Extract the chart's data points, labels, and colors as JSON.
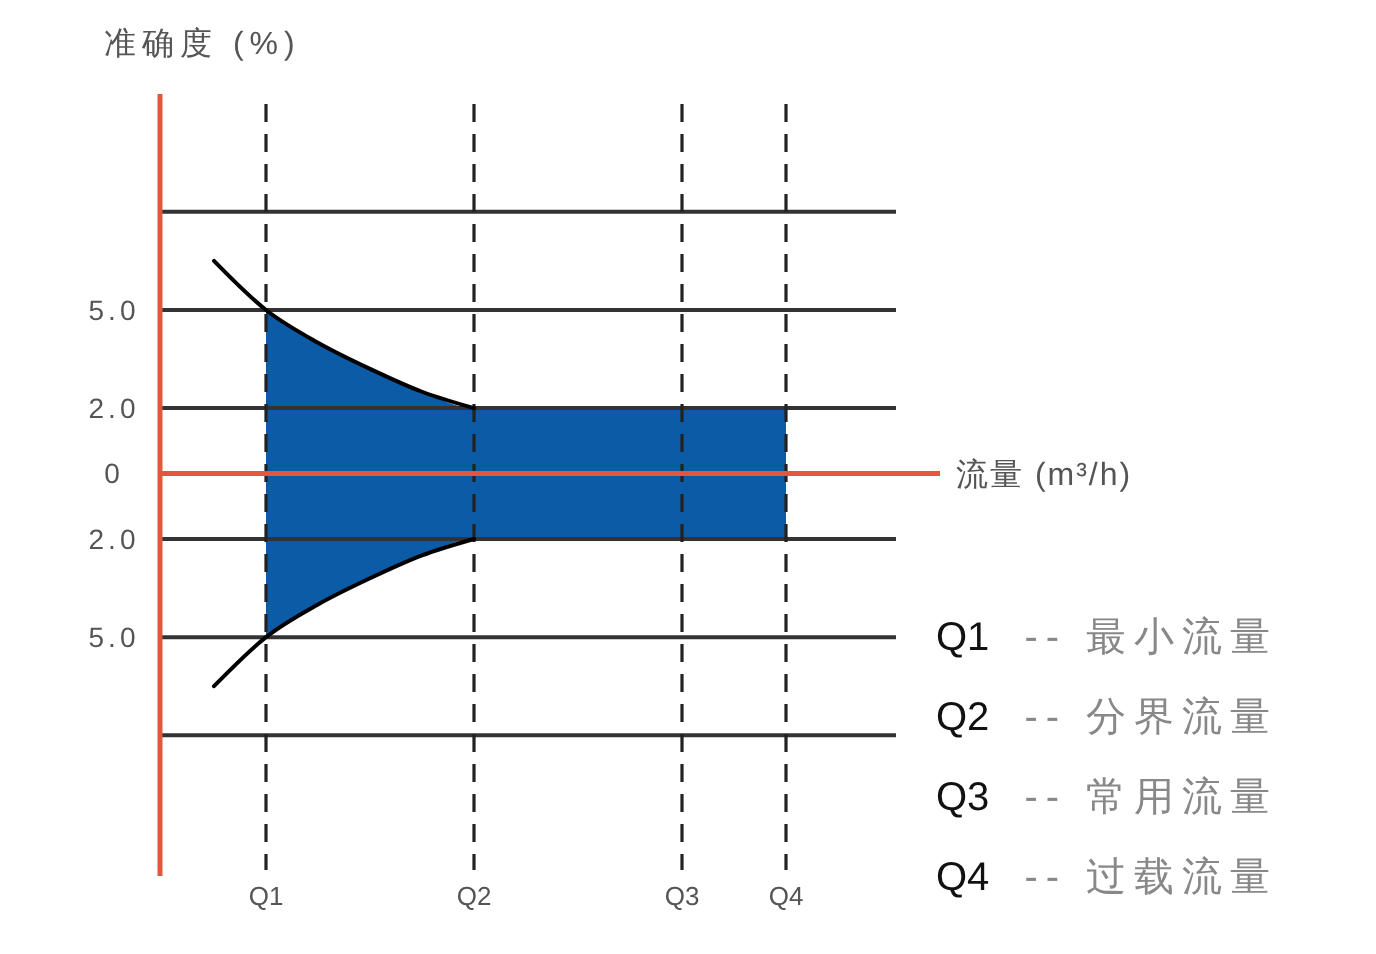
{
  "chart_data": {
    "type": "area",
    "y2label": "准确度 (%)",
    "xlabel": "流量 (m³/h)",
    "categories": [
      null,
      "Q1",
      null,
      null,
      null,
      "Q2",
      null,
      null,
      null,
      "Q3",
      null,
      "Q4"
    ],
    "ylim": [
      12.3,
      -11.6
    ],
    "yticks": [
      {
        "value": 2,
        "label": "2.0"
      },
      {
        "value": 5,
        "label": "5.0"
      },
      {
        "value": 8,
        "label": null
      }
    ],
    "y2lim": [
      -12.3,
      11.6
    ],
    "y2ticks": [
      0,
      {
        "value": 2,
        "label": "2.0"
      },
      {
        "value": 5,
        "label": "5.0"
      },
      {
        "value": 8,
        "label": null
      }
    ],
    "grid": true,
    "ref_lines": [
      {
        "axis": "y",
        "value": 0,
        "color": "#e5573c"
      }
    ],
    "series": [
      {
        "color": "#0b5ba6",
        "axis": "y2",
        "values": [
          null,
          5,
          4.0,
          3.2,
          2.5,
          2,
          2,
          2,
          2,
          2,
          2,
          2
        ]
      },
      {
        "color": "#0b5ba6",
        "values": [
          null,
          5,
          4.0,
          3.2,
          2.5,
          2,
          2,
          2,
          2,
          2,
          2,
          2
        ]
      },
      {
        "type": "line",
        "color": "#000000",
        "axis": "y2",
        "values": [
          6.5,
          5,
          4.0,
          3.2,
          2.5,
          2,
          null,
          null,
          null,
          null,
          null,
          null
        ]
      },
      {
        "type": "line",
        "color": "#000000",
        "values": [
          6.5,
          5,
          4.0,
          3.2,
          2.5,
          2,
          null,
          null,
          null,
          null,
          null,
          null
        ]
      }
    ],
    "annotations": [
      "Q1 -- 最小流量",
      "Q2 -- 分界流量",
      "Q3 -- 常用流量",
      "Q4 -- 过载流量"
    ]
  }
}
